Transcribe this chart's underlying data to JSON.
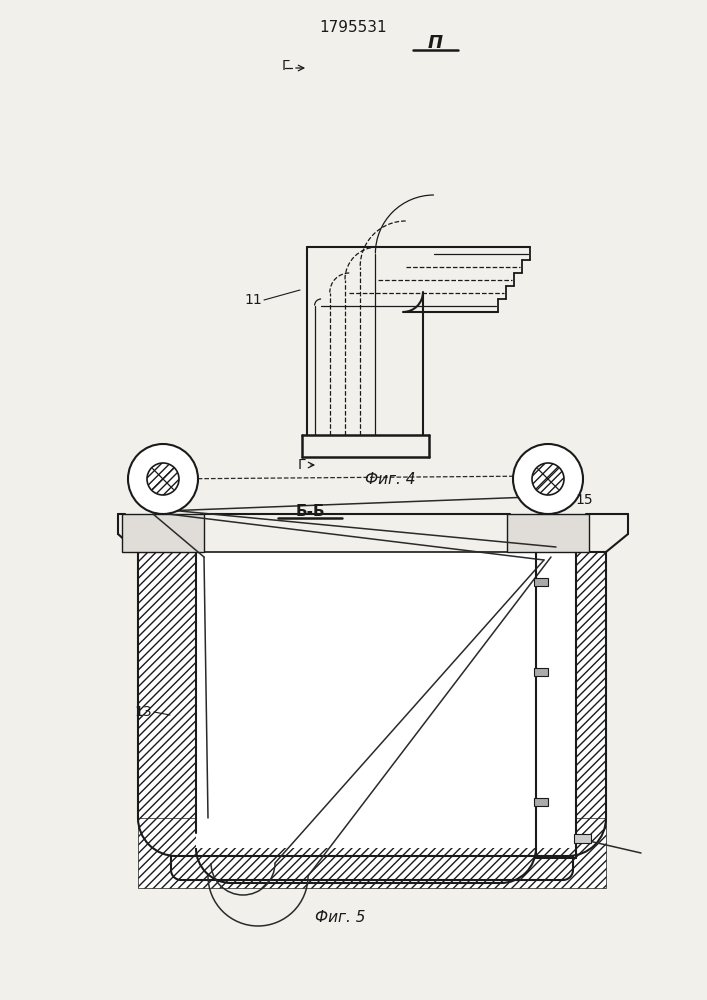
{
  "patent_number": "1795531",
  "fig4_label": "Фиг. 4",
  "fig5_label": "Фиг. 5",
  "section_bb": "Б-Б",
  "section_ii": "Π",
  "label_11": "11",
  "label_13": "13",
  "label_15": "15",
  "label_g": "Г",
  "bg_color": "#f2f0eb",
  "line_color": "#1a1a1a"
}
